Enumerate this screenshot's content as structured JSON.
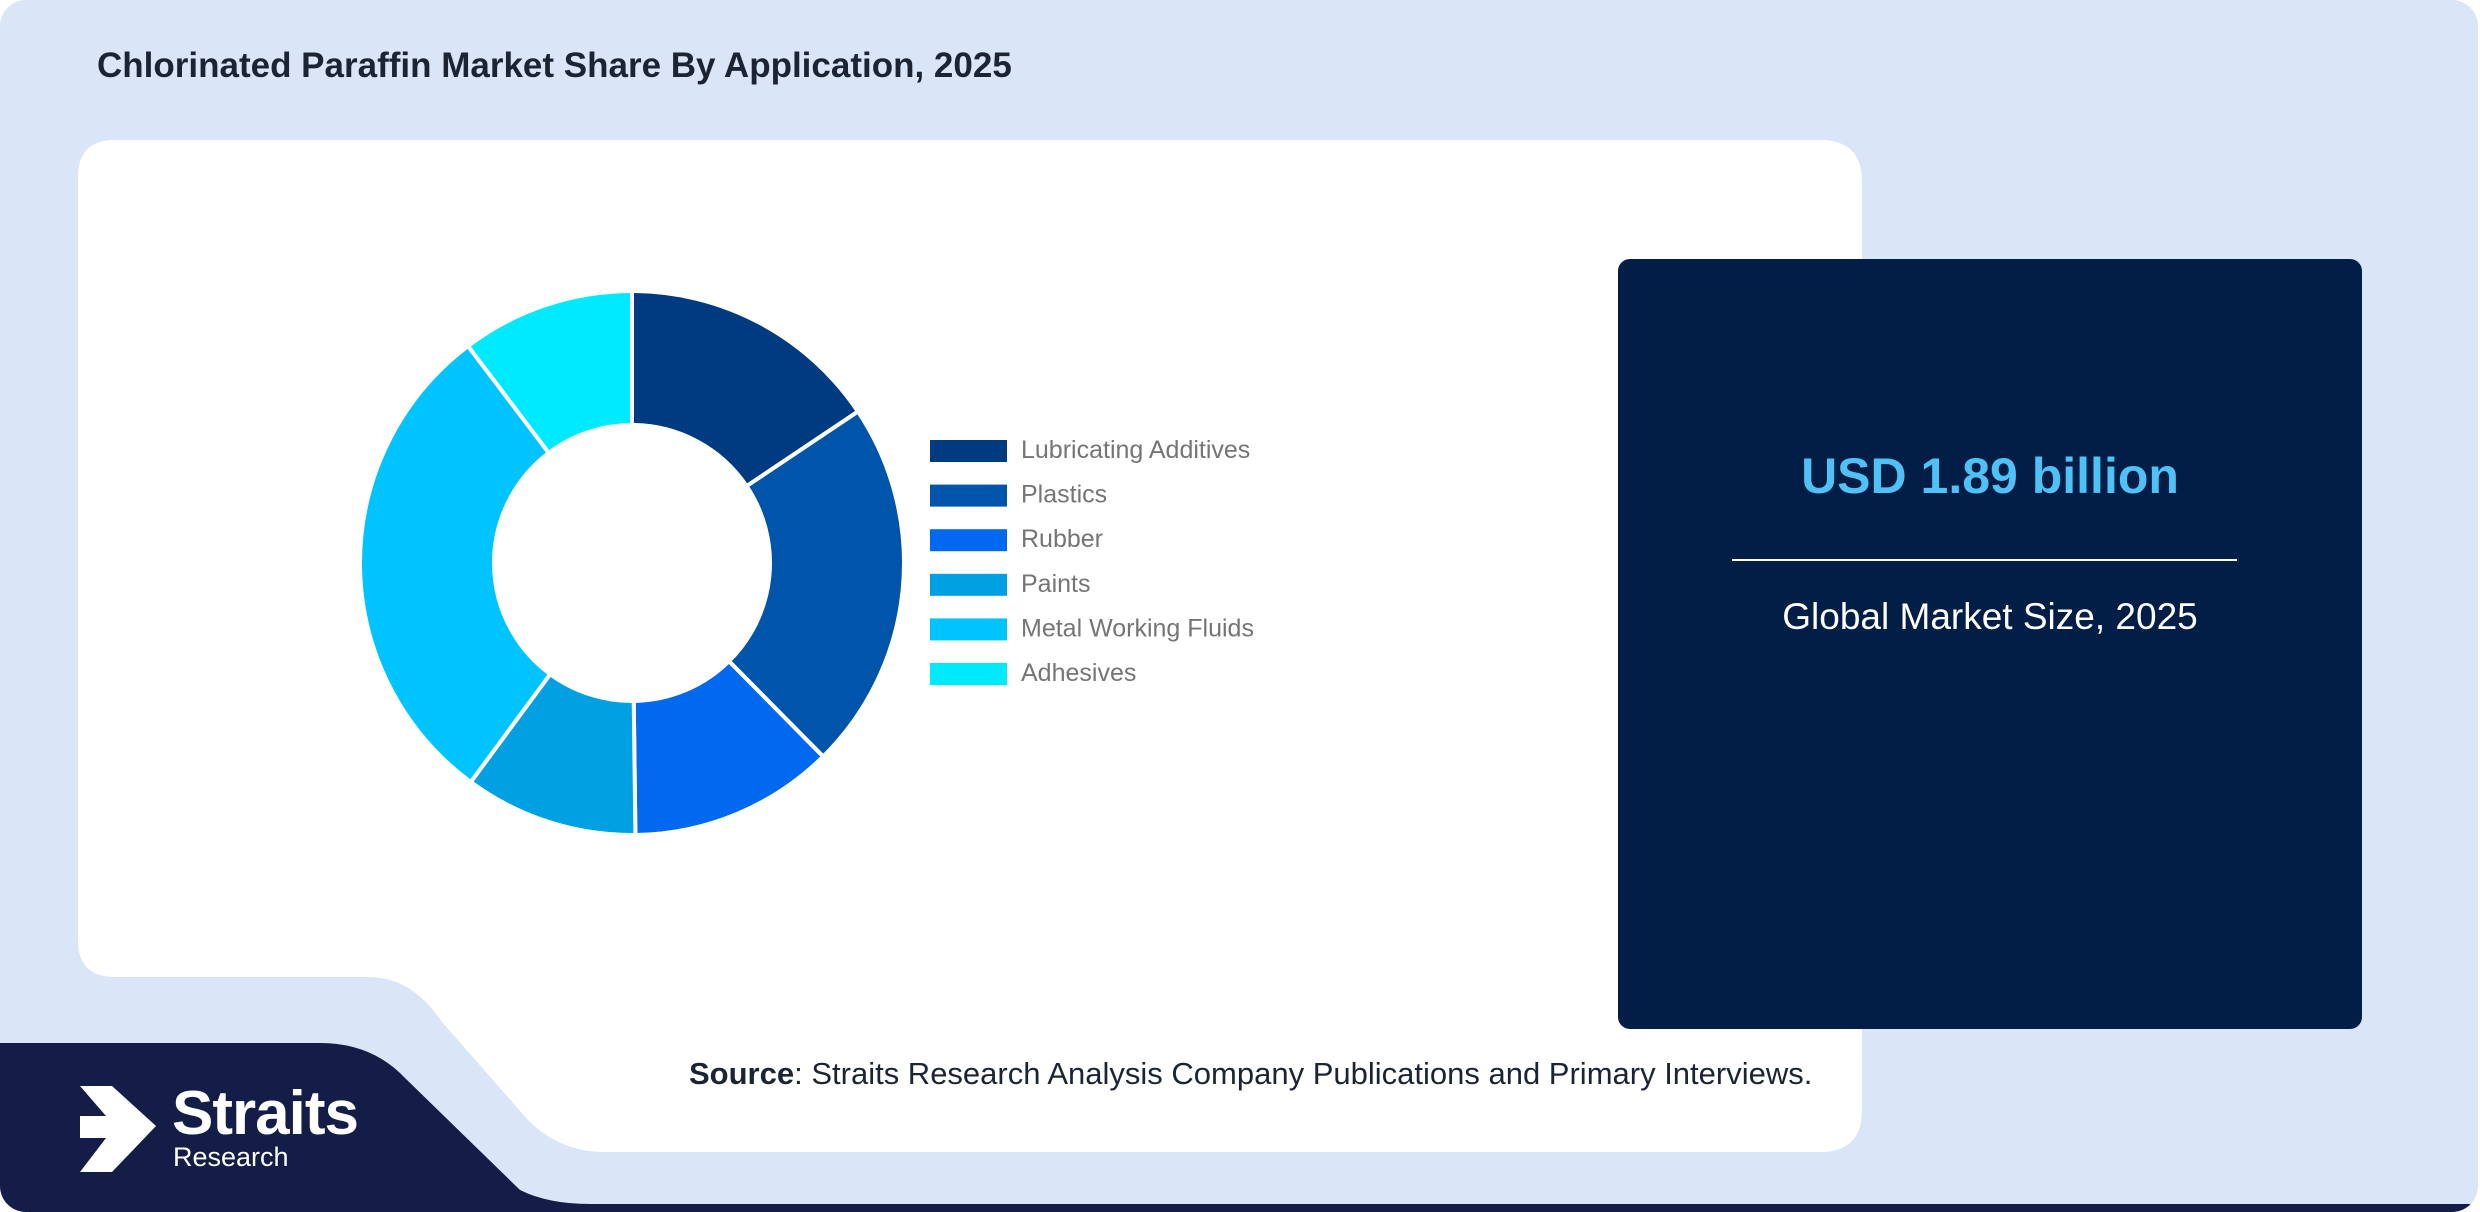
{
  "header": {
    "title": "Chlorinated Paraffin Market Share By Application, 2025"
  },
  "chart_data": {
    "type": "pie",
    "donut": true,
    "title": "",
    "legend_position": "right",
    "categories": [
      "Lubricating Additives",
      "Plastics",
      "Rubber",
      "Paints",
      "Metal Working Fluids",
      "Adhesives"
    ],
    "values": [
      15.6,
      22.0,
      12.2,
      10.3,
      29.6,
      10.3
    ],
    "colors": [
      "#003a80",
      "#0054aa",
      "#0069f0",
      "#00a0e3",
      "#00c4ff",
      "#00eaff"
    ]
  },
  "info_box": {
    "value": "USD 1.89 billion",
    "label": "Global Market Size, 2025",
    "accent_color": "#4fc1f4"
  },
  "source": {
    "label": "Source",
    "text": ": Straits Research Analysis Company Publications and Primary Interviews."
  },
  "logo": {
    "name": "Straits",
    "sub": "Research",
    "icon": "arrow-logo-icon"
  }
}
